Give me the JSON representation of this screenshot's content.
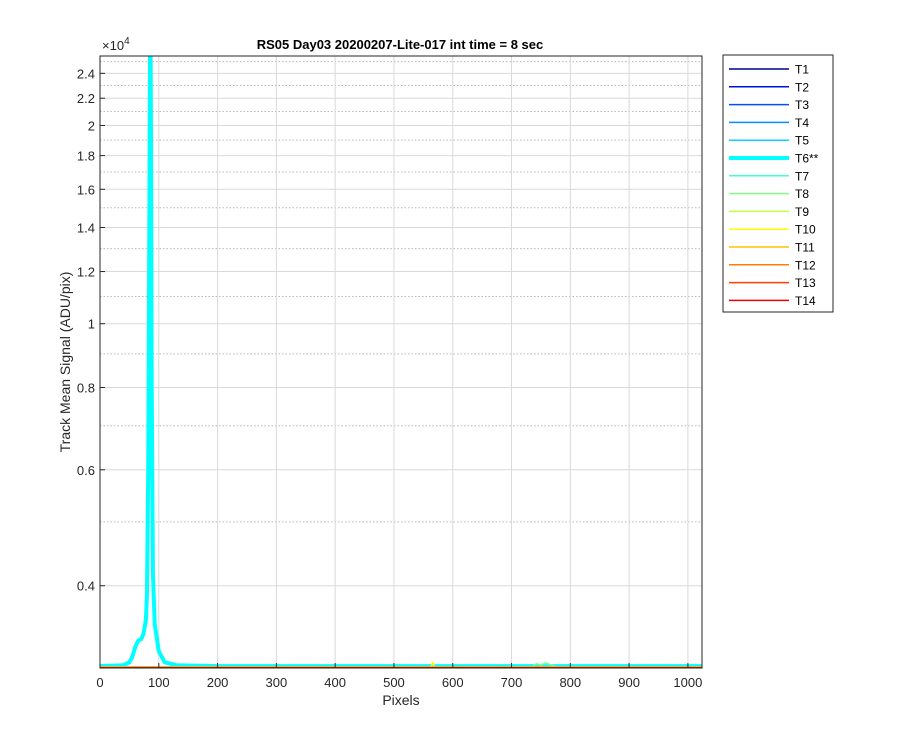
{
  "chart_data": {
    "type": "line",
    "title": "RS05 Day03 20200207-Lite-017 int time = 8 sec",
    "xlabel": "Pixels",
    "ylabel": "Track Mean Signal (ADU/pix)",
    "y_exponent_label": "×10",
    "y_exponent_power": "4",
    "y_scale": "log",
    "xlim": [
      0,
      1024
    ],
    "ylim": [
      3000,
      25500
    ],
    "grid": true,
    "x_ticks": [
      0,
      100,
      200,
      300,
      400,
      500,
      600,
      700,
      800,
      900,
      1000
    ],
    "x_tick_labels": [
      "0",
      "100",
      "200",
      "300",
      "400",
      "500",
      "600",
      "700",
      "800",
      "900",
      "1000"
    ],
    "y_ticks": [
      4000,
      6000,
      8000,
      10000,
      12000,
      14000,
      16000,
      18000,
      20000,
      22000,
      24000
    ],
    "y_tick_labels": [
      "0.4",
      "0.6",
      "0.8",
      "1",
      "1.2",
      "1.4",
      "1.6",
      "1.8",
      "2",
      "2.2",
      "2.4"
    ],
    "legend_position": "outside-right",
    "series": [
      {
        "name": "T1",
        "color": "#000090",
        "width": 1.5,
        "points": [
          [
            0,
            3010
          ],
          [
            1024,
            3010
          ]
        ]
      },
      {
        "name": "T2",
        "color": "#0010D8",
        "width": 1.5,
        "points": [
          [
            0,
            3010
          ],
          [
            1024,
            3010
          ]
        ]
      },
      {
        "name": "T3",
        "color": "#0050FF",
        "width": 1.5,
        "points": [
          [
            0,
            3010
          ],
          [
            1024,
            3010
          ]
        ]
      },
      {
        "name": "T4",
        "color": "#0090FF",
        "width": 1.5,
        "points": [
          [
            0,
            3010
          ],
          [
            1024,
            3010
          ]
        ]
      },
      {
        "name": "T5",
        "color": "#10D0FF",
        "width": 1.5,
        "points": [
          [
            0,
            3010
          ],
          [
            1024,
            3010
          ]
        ]
      },
      {
        "name": "T6**",
        "color": "#00FFFF",
        "width": 4,
        "points": [
          [
            0,
            3020
          ],
          [
            40,
            3030
          ],
          [
            50,
            3060
          ],
          [
            55,
            3120
          ],
          [
            60,
            3230
          ],
          [
            65,
            3300
          ],
          [
            70,
            3320
          ],
          [
            74,
            3380
          ],
          [
            78,
            3550
          ],
          [
            80,
            3900
          ],
          [
            82,
            6000
          ],
          [
            84,
            15000
          ],
          [
            85,
            25500
          ],
          [
            86,
            25500
          ],
          [
            87,
            18000
          ],
          [
            88,
            8000
          ],
          [
            90,
            4200
          ],
          [
            93,
            3500
          ],
          [
            100,
            3180
          ],
          [
            110,
            3060
          ],
          [
            130,
            3030
          ],
          [
            200,
            3020
          ],
          [
            1024,
            3020
          ]
        ]
      },
      {
        "name": "T7",
        "color": "#40FFD0",
        "width": 1.5,
        "points": [
          [
            0,
            3010
          ],
          [
            1024,
            3010
          ]
        ]
      },
      {
        "name": "T8",
        "color": "#80FF80",
        "width": 1.5,
        "points": [
          [
            0,
            3010
          ],
          [
            735,
            3010
          ],
          [
            742,
            3045
          ],
          [
            750,
            3030
          ],
          [
            758,
            3055
          ],
          [
            766,
            3035
          ],
          [
            775,
            3015
          ],
          [
            1024,
            3010
          ]
        ]
      },
      {
        "name": "T9",
        "color": "#C0FF40",
        "width": 1.5,
        "points": [
          [
            0,
            3010
          ],
          [
            1024,
            3010
          ]
        ]
      },
      {
        "name": "T10",
        "color": "#FFFF00",
        "width": 1.5,
        "points": [
          [
            0,
            3010
          ],
          [
            563,
            3010
          ],
          [
            566,
            3060
          ],
          [
            569,
            3010
          ],
          [
            1024,
            3010
          ]
        ]
      },
      {
        "name": "T11",
        "color": "#FFC000",
        "width": 1.5,
        "points": [
          [
            0,
            3008
          ],
          [
            1024,
            3008
          ]
        ]
      },
      {
        "name": "T12",
        "color": "#FF8000",
        "width": 1.5,
        "points": [
          [
            0,
            3006
          ],
          [
            1024,
            3006
          ]
        ]
      },
      {
        "name": "T13",
        "color": "#FF4000",
        "width": 1.5,
        "points": [
          [
            0,
            3004
          ],
          [
            1024,
            3004
          ]
        ]
      },
      {
        "name": "T14",
        "color": "#F00000",
        "width": 1.5,
        "points": [
          [
            0,
            3002
          ],
          [
            1024,
            3002
          ]
        ]
      }
    ]
  }
}
